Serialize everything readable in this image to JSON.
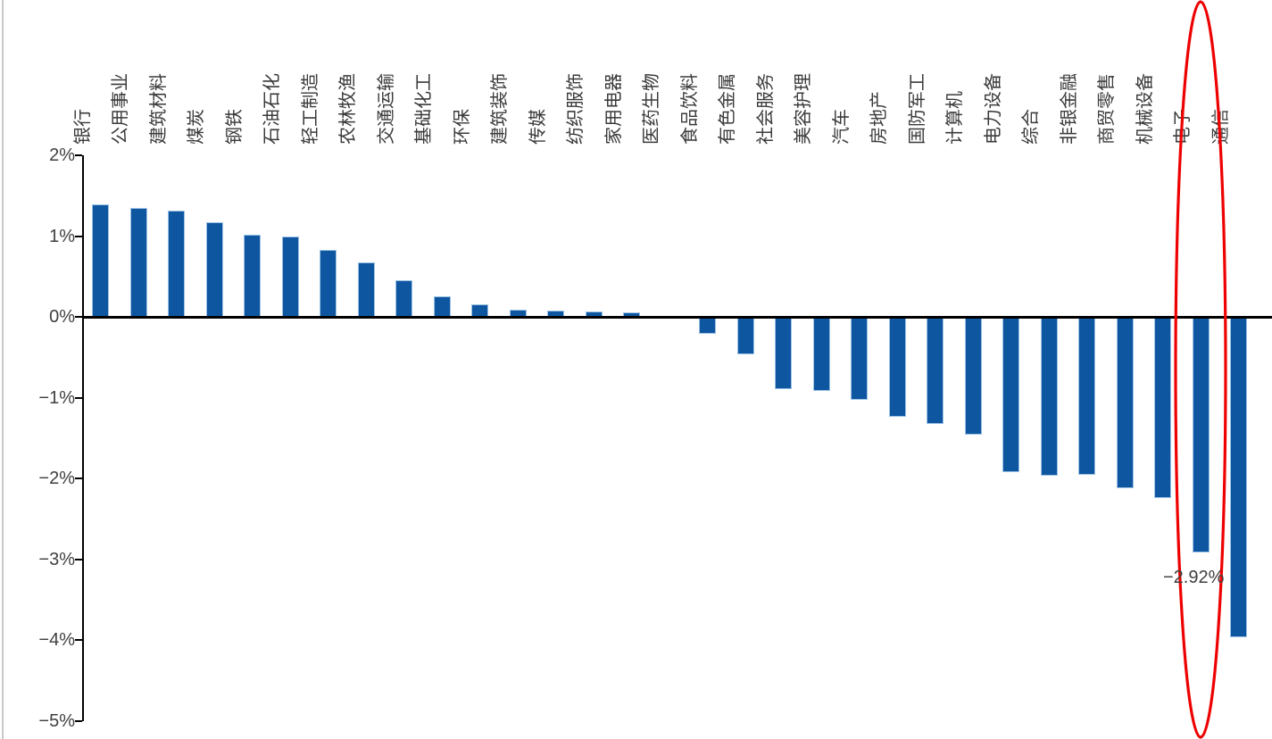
{
  "chart_data": {
    "type": "bar",
    "title": "",
    "xlabel": "",
    "ylabel": "",
    "unit": "%",
    "categories": [
      "银行",
      "公用事业",
      "建筑材料",
      "煤炭",
      "钢铁",
      "石油石化",
      "轻工制造",
      "农林牧渔",
      "交通运输",
      "基础化工",
      "环保",
      "建筑装饰",
      "传媒",
      "纺织服饰",
      "家用电器",
      "医药生物",
      "食品饮料",
      "有色金属",
      "社会服务",
      "美容护理",
      "汽车",
      "房地产",
      "国防军工",
      "计算机",
      "电力设备",
      "综合",
      "非银金融",
      "商贸零售",
      "机械设备",
      "电子",
      "通信"
    ],
    "values": [
      1.39,
      1.35,
      1.31,
      1.17,
      1.02,
      1.0,
      0.83,
      0.67,
      0.45,
      0.25,
      0.15,
      0.09,
      0.08,
      0.07,
      0.06,
      0.0,
      -0.21,
      -0.46,
      -0.89,
      -0.92,
      -1.03,
      -1.24,
      -1.33,
      -1.46,
      -1.92,
      -1.97,
      -1.96,
      -2.12,
      -2.24,
      -2.92,
      -3.97
    ],
    "ylim": [
      -5,
      2
    ],
    "ytick_step": 1,
    "ytick_labels": [
      "2%",
      "1%",
      "0%",
      "−1%",
      "−2%",
      "−3%",
      "−4%",
      "−5%"
    ],
    "ytick_values": [
      2,
      1,
      0,
      -1,
      -2,
      -3,
      -4,
      -5
    ],
    "grid": false,
    "legend": "none",
    "bar_color": "#0f56a0",
    "bar_border_color": "#9cc2e5",
    "annotation": {
      "label": "−2.92%",
      "category": "电子"
    },
    "highlight": {
      "shape": "ellipse",
      "category": "电子",
      "stroke_color": "#ee0000"
    }
  }
}
